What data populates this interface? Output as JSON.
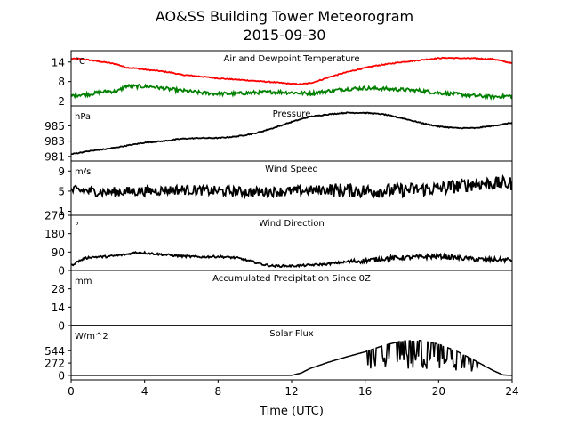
{
  "figure": {
    "title": "AO&SS Building Tower Meteorogram",
    "subtitle": "2015-09-30",
    "xlabel": "Time (UTC)"
  },
  "chart_data": {
    "type": "line",
    "title": "AO&SS Building Tower Meteorogram",
    "subtitle": "2015-09-30",
    "xlabel": "Time (UTC)",
    "xlim": [
      0,
      24
    ],
    "xticks": [
      0,
      4,
      8,
      12,
      16,
      20,
      24
    ],
    "panels": [
      {
        "id": "temp",
        "title": "Air and Dewpoint Temperature",
        "unit": "°C",
        "ylim": [
          0.5,
          17.5
        ],
        "yticks": [
          2,
          8,
          14
        ],
        "series": [
          {
            "color": "#ff0000",
            "noise": 0.15,
            "x": [
              0,
              0.5,
              1,
              1.5,
              2,
              2.5,
              3,
              3.5,
              4,
              4.5,
              5,
              5.5,
              6,
              7,
              8,
              9,
              10,
              11,
              12,
              12.5,
              13,
              13.5,
              14,
              15,
              16,
              16.5,
              17,
              18,
              19,
              20,
              20.5,
              21,
              22,
              23,
              24
            ],
            "y": [
              15,
              15,
              14.6,
              14.2,
              13.8,
              13.3,
              12.3,
              12.1,
              11.7,
              11.4,
              11.1,
              10.7,
              10.1,
              9.6,
              9.0,
              8.6,
              8.2,
              7.8,
              7.3,
              7.2,
              7.5,
              8.3,
              9.3,
              10.9,
              12.2,
              12.8,
              13.2,
              14.0,
              14.6,
              15.2,
              15.3,
              15.2,
              15.1,
              14.9,
              13.6
            ]
          },
          {
            "color": "#008000",
            "noise": 0.55,
            "x": [
              0,
              0.5,
              1,
              1.5,
              2,
              2.5,
              3,
              3.5,
              4,
              4.5,
              5,
              6,
              7,
              8,
              9,
              10,
              11,
              12,
              13,
              14,
              15,
              16,
              17,
              18,
              19,
              20,
              21,
              22,
              23,
              24
            ],
            "y": [
              3.6,
              4.0,
              4.1,
              4.6,
              5.0,
              4.9,
              6.6,
              6.5,
              6.5,
              6.4,
              5.9,
              5.2,
              4.6,
              4.2,
              4.3,
              4.6,
              4.8,
              4.6,
              4.3,
              5.1,
              5.7,
              6.0,
              5.8,
              5.5,
              5.2,
              4.5,
              4.1,
              3.6,
              3.3,
              3.6
            ]
          }
        ]
      },
      {
        "id": "pressure",
        "title": "Pressure",
        "unit": "hPa",
        "ylim": [
          980.4,
          987.6
        ],
        "yticks": [
          981,
          983,
          985
        ],
        "series": [
          {
            "color": "#000000",
            "noise": 0.06,
            "x": [
              0,
              1,
              2,
              3,
              4,
              5,
              6,
              7,
              8,
              9,
              10,
              11,
              12,
              13,
              14,
              15,
              16,
              17,
              18,
              19,
              20,
              21,
              22,
              23,
              24
            ],
            "y": [
              981.3,
              981.7,
              982.0,
              982.4,
              982.8,
              983.0,
              983.3,
              983.4,
              983.4,
              983.6,
              984.0,
              984.7,
              985.5,
              986.2,
              986.5,
              986.7,
              986.7,
              986.5,
              986.0,
              985.4,
              984.9,
              984.7,
              984.7,
              985.0,
              985.4
            ]
          }
        ]
      },
      {
        "id": "wind_speed",
        "title": "Wind Speed",
        "unit": "m/s",
        "ylim": [
          0.2,
          11.0
        ],
        "yticks": [
          1,
          5,
          9
        ],
        "series": [
          {
            "color": "#000000",
            "noise": 1.0,
            "x": [
              0,
              2,
              4,
              6,
              8,
              10,
              12,
              14,
              16,
              18,
              20,
              22,
              24
            ],
            "y": [
              5.2,
              4.8,
              5.0,
              5.3,
              5.0,
              4.8,
              5.0,
              5.3,
              5.0,
              5.2,
              5.5,
              6.5,
              6.5
            ]
          }
        ]
      },
      {
        "id": "wind_dir",
        "title": "Wind Direction",
        "unit": "°",
        "ylim": [
          0,
          270
        ],
        "yticks": [
          0,
          90,
          180,
          270
        ],
        "series": [
          {
            "color": "#000000",
            "noise": 5,
            "x": [
              0,
              0.5,
              1,
              2,
              3,
              3.5,
              4,
              5,
              6,
              7,
              8,
              9,
              10,
              10.5,
              11,
              12,
              13,
              14,
              15,
              16,
              17,
              18,
              19,
              20,
              21,
              22,
              23,
              24
            ],
            "y": [
              25,
              50,
              65,
              68,
              78,
              88,
              86,
              78,
              70,
              66,
              68,
              62,
              40,
              28,
              22,
              22,
              26,
              32,
              42,
              48,
              58,
              62,
              66,
              70,
              62,
              55,
              52,
              52
            ]
          }
        ]
      },
      {
        "id": "precip",
        "title": "Accumulated Precipitation Since 0Z",
        "unit": "mm",
        "ylim": [
          0,
          42
        ],
        "yticks": [
          0,
          14,
          28
        ],
        "series": [
          {
            "color": "#000000",
            "noise": 0,
            "x": [
              0,
              24
            ],
            "y": [
              0,
              0
            ]
          }
        ]
      },
      {
        "id": "solar",
        "title": "Solar Flux",
        "unit": "W/m^2",
        "ylim": [
          -100,
          1100
        ],
        "yticks": [
          0,
          272,
          544
        ],
        "series": [
          {
            "color": "#000000",
            "noise": 0,
            "x": [
              0,
              12,
              12.5,
              13,
              14,
              15,
              16,
              17,
              18,
              19,
              20,
              21,
              22,
              23,
              23.5,
              24
            ],
            "y": [
              0,
              0,
              50,
              150,
              290,
              410,
              520,
              660,
              760,
              770,
              690,
              530,
              320,
              100,
              10,
              0
            ]
          }
        ]
      }
    ]
  }
}
